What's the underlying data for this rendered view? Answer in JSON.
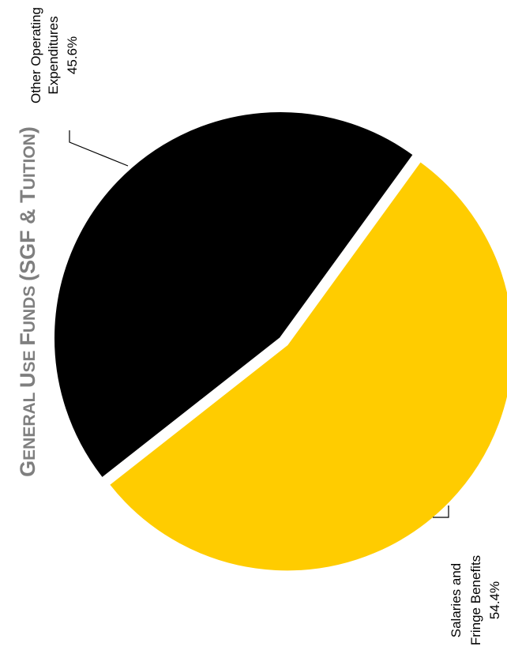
{
  "title_parts": [
    {
      "text": "G",
      "size": "big"
    },
    {
      "text": "ENERAL ",
      "size": "small"
    },
    {
      "text": "U",
      "size": "big"
    },
    {
      "text": "SE ",
      "size": "small"
    },
    {
      "text": "F",
      "size": "big"
    },
    {
      "text": "UNDS ",
      "size": "small"
    },
    {
      "text": "(SGF & T",
      "size": "big"
    },
    {
      "text": "UITION",
      "size": "small"
    },
    {
      "text": ")",
      "size": "big"
    }
  ],
  "chart_data": {
    "type": "pie",
    "title": "General Use Funds (SGF & Tuition)",
    "rotation": "90deg clockwise (text reads bottom-to-top)",
    "slices": [
      {
        "name": "Salaries and Fringe Benefits",
        "label_lines": [
          "Salaries and",
          "Fringe Benefits"
        ],
        "value": 54.4,
        "value_label": "54.4%",
        "color": "#ffcc00",
        "exploded": true
      },
      {
        "name": "Other Operating Expenditures",
        "label_lines": [
          "Other Operating",
          "Expenditures"
        ],
        "value": 45.6,
        "value_label": "45.6%",
        "color": "#000000",
        "exploded": false
      }
    ]
  }
}
